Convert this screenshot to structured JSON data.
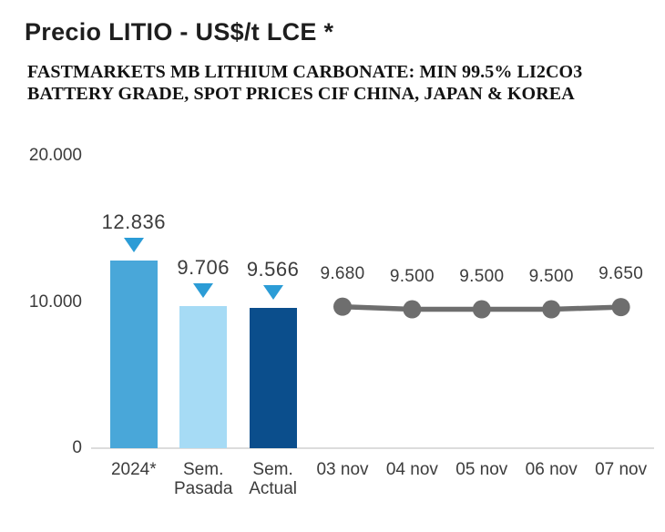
{
  "title": "Precio LITIO - US$/t LCE *",
  "subtitle": {
    "line1": "FASTMARKETS MB LITHIUM CARBONATE: MIN 99.5% LI2CO3",
    "line2": "BATTERY GRADE, SPOT PRICES CIF CHINA, JAPAN & KOREA"
  },
  "style": {
    "marker_color": "#2b9cd6",
    "line_color": "#6e6e6e",
    "baseline_color": "#dcdcdc",
    "label_color": "#3c3c3c",
    "title_color": "#1e1e1e"
  },
  "chart_data": {
    "type": "bar",
    "combo": "bar + line",
    "grid": false,
    "legend": false,
    "categories": [
      "2024*",
      "Sem.\nPasada",
      "Sem.\nActual",
      "03 nov",
      "04 nov",
      "05 nov",
      "06 nov",
      "07 nov"
    ],
    "y_axis": {
      "range": [
        0,
        20000
      ],
      "ticks": [
        {
          "value": 20000,
          "label": "20.000"
        },
        {
          "value": 10000,
          "label": "10.000"
        },
        {
          "value": 0,
          "label": "0"
        }
      ]
    },
    "series": [
      {
        "name": "bars",
        "type": "bar",
        "marker": "triangle-down",
        "points": [
          {
            "category_index": 0,
            "category": "2024*",
            "value": 12836,
            "label": "12.836",
            "color": "#49a7d9"
          },
          {
            "category_index": 1,
            "category": "Sem. Pasada",
            "value": 9706,
            "label": "9.706",
            "color": "#a6dbf5"
          },
          {
            "category_index": 2,
            "category": "Sem. Actual",
            "value": 9566,
            "label": "9.566",
            "color": "#0b4e8c"
          }
        ]
      },
      {
        "name": "line",
        "type": "line",
        "color": "#6e6e6e",
        "points": [
          {
            "category_index": 3,
            "category": "03 nov",
            "value": 9680,
            "label": "9.680"
          },
          {
            "category_index": 4,
            "category": "04 nov",
            "value": 9500,
            "label": "9.500"
          },
          {
            "category_index": 5,
            "category": "05 nov",
            "value": 9500,
            "label": "9.500"
          },
          {
            "category_index": 6,
            "category": "06 nov",
            "value": 9500,
            "label": "9.500"
          },
          {
            "category_index": 7,
            "category": "07 nov",
            "value": 9650,
            "label": "9.650"
          }
        ]
      }
    ]
  }
}
